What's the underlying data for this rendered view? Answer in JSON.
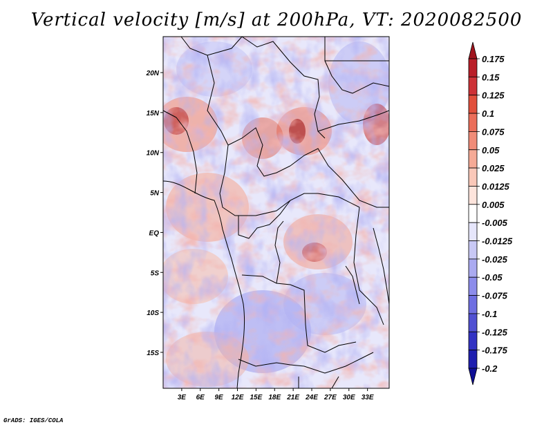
{
  "title": "Vertical velocity [m/s] at 200hPa, VT: 2020082500",
  "credit": "GrADS: IGES/COLA",
  "map": {
    "variable": "Vertical velocity",
    "units": "m/s",
    "level": "200hPa",
    "valid_time": "2020082500",
    "lat_range": [
      -19.5,
      24.5
    ],
    "lon_range": [
      0,
      36.5
    ],
    "lat_ticks": [
      {
        "label": "20N",
        "value": 20
      },
      {
        "label": "15N",
        "value": 15
      },
      {
        "label": "10N",
        "value": 10
      },
      {
        "label": "5N",
        "value": 5
      },
      {
        "label": "EQ",
        "value": 0
      },
      {
        "label": "5S",
        "value": -5
      },
      {
        "label": "10S",
        "value": -10
      },
      {
        "label": "15S",
        "value": -15
      }
    ],
    "lon_ticks": [
      {
        "label": "3E",
        "value": 3
      },
      {
        "label": "6E",
        "value": 6
      },
      {
        "label": "9E",
        "value": 9
      },
      {
        "label": "12E",
        "value": 12
      },
      {
        "label": "15E",
        "value": 15
      },
      {
        "label": "18E",
        "value": 18
      },
      {
        "label": "21E",
        "value": 21
      },
      {
        "label": "24E",
        "value": 24
      },
      {
        "label": "27E",
        "value": 27
      },
      {
        "label": "30E",
        "value": 30
      },
      {
        "label": "33E",
        "value": 33
      }
    ]
  },
  "colorbar": {
    "labels": [
      "0.175",
      "0.15",
      "0.125",
      "0.1",
      "0.075",
      "0.05",
      "0.025",
      "0.0125",
      "0.005",
      "-0.005",
      "-0.0125",
      "-0.025",
      "-0.05",
      "-0.075",
      "-0.1",
      "-0.125",
      "-0.175",
      "-0.2"
    ],
    "colors": [
      "#a0141e",
      "#b91e28",
      "#cd3237",
      "#e1503c",
      "#eb6e5a",
      "#f08c78",
      "#f5aa96",
      "#fac8b9",
      "#fde4dc",
      "#ffffff",
      "#e6e6fb",
      "#c8c8f5",
      "#aaaaf0",
      "#8c8ceb",
      "#6e6ee1",
      "#5050d2",
      "#3232c3",
      "#1e1eaf",
      "#0f0f96"
    ]
  }
}
